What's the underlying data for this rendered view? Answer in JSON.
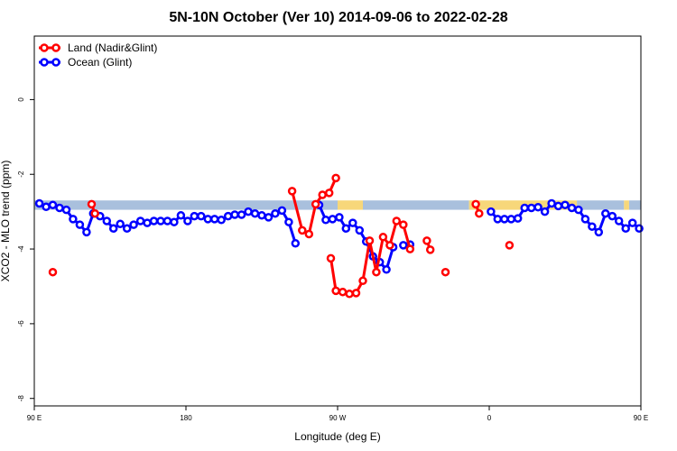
{
  "chart_data": {
    "type": "line",
    "title": "5N-10N October (Ver 10)   2014-09-06 to 2022-02-28",
    "xlabel": "Longitude (deg E)",
    "ylabel": "XCO2 - MLO trend (ppm)",
    "xlim": [
      90,
      450
    ],
    "ylim": [
      -8.2,
      1.7
    ],
    "x_ticks": [
      {
        "value": 90,
        "label": "90 E"
      },
      {
        "value": 180,
        "label": "180"
      },
      {
        "value": 270,
        "label": "90 W"
      },
      {
        "value": 360,
        "label": "0"
      },
      {
        "value": 450,
        "label": "90 E"
      },
      {
        "value": 540,
        "label": "180"
      }
    ],
    "y_ticks": [
      {
        "value": 0,
        "label": "0"
      },
      {
        "value": -2,
        "label": "-2"
      },
      {
        "value": -4,
        "label": "-4"
      },
      {
        "value": -6,
        "label": "-6"
      },
      {
        "value": -8,
        "label": "-8"
      }
    ],
    "legend_position": "top-left",
    "grid": false,
    "background_band": {
      "y_range": [
        -2.95,
        -2.7
      ],
      "segments": [
        {
          "x": [
            90,
            270
          ],
          "color": "#a9c0dd"
        },
        {
          "x": [
            270,
            285
          ],
          "color": "#f7d77a"
        },
        {
          "x": [
            285,
            348
          ],
          "color": "#a9c0dd"
        },
        {
          "x": [
            348,
            412
          ],
          "color": "#f7d77a"
        },
        {
          "x": [
            412,
            440
          ],
          "color": "#a9c0dd"
        },
        {
          "x": [
            440,
            443
          ],
          "color": "#f7d77a"
        },
        {
          "x": [
            443,
            540
          ],
          "color": "#a9c0dd"
        }
      ]
    },
    "series": [
      {
        "name": "Ocean (Glint)",
        "color": "#0000ff",
        "points": [
          [
            93,
            -2.78
          ],
          [
            97,
            -2.87
          ],
          [
            101,
            -2.82
          ],
          [
            105,
            -2.9
          ],
          [
            109,
            -2.95
          ],
          [
            113,
            -3.2
          ],
          [
            117,
            -3.35
          ],
          [
            121,
            -3.55
          ],
          [
            125,
            -3.05
          ],
          [
            129,
            -3.12
          ],
          [
            133,
            -3.25
          ],
          [
            137,
            -3.45
          ],
          [
            141,
            -3.33
          ],
          [
            145,
            -3.45
          ],
          [
            149,
            -3.35
          ],
          [
            153,
            -3.25
          ],
          [
            157,
            -3.3
          ],
          [
            161,
            -3.25
          ],
          [
            165,
            -3.25
          ],
          [
            169,
            -3.25
          ],
          [
            173,
            -3.28
          ],
          [
            177,
            -3.1
          ],
          [
            181,
            -3.25
          ],
          [
            185,
            -3.12
          ],
          [
            189,
            -3.12
          ],
          [
            193,
            -3.2
          ],
          [
            197,
            -3.2
          ],
          [
            201,
            -3.22
          ],
          [
            205,
            -3.12
          ],
          [
            209,
            -3.08
          ],
          [
            213,
            -3.08
          ],
          [
            217,
            -3.0
          ],
          [
            221,
            -3.05
          ],
          [
            225,
            -3.1
          ],
          [
            229,
            -3.15
          ],
          [
            233,
            -3.05
          ],
          [
            237,
            -2.97
          ],
          [
            241,
            -3.28
          ],
          [
            245,
            -3.85
          ],
          null,
          [
            259,
            -2.82
          ],
          [
            263,
            -3.22
          ],
          [
            267,
            -3.2
          ],
          [
            271,
            -3.15
          ],
          [
            275,
            -3.45
          ],
          [
            279,
            -3.3
          ],
          [
            283,
            -3.5
          ],
          [
            287,
            -3.8
          ],
          [
            291,
            -4.2
          ],
          [
            295,
            -4.35
          ],
          [
            299,
            -4.55
          ],
          [
            303,
            -3.95
          ],
          null,
          [
            309,
            -3.9
          ],
          [
            313,
            -3.88
          ],
          null,
          [
            361,
            -3.0
          ],
          [
            365,
            -3.2
          ],
          [
            369,
            -3.2
          ],
          [
            373,
            -3.2
          ],
          [
            377,
            -3.18
          ],
          [
            381,
            -2.9
          ],
          [
            385,
            -2.9
          ],
          [
            389,
            -2.88
          ],
          [
            393,
            -3.0
          ],
          [
            397,
            -2.78
          ],
          [
            401,
            -2.85
          ],
          [
            405,
            -2.82
          ],
          [
            409,
            -2.9
          ],
          [
            413,
            -2.95
          ],
          [
            417,
            -3.2
          ],
          [
            421,
            -3.4
          ],
          [
            425,
            -3.55
          ],
          [
            429,
            -3.05
          ],
          [
            433,
            -3.12
          ],
          [
            437,
            -3.25
          ],
          [
            441,
            -3.45
          ],
          [
            445,
            -3.3
          ],
          [
            449,
            -3.45
          ]
        ]
      },
      {
        "name": "Land (Nadir&Glint)",
        "color": "#ff0000",
        "points": [
          [
            101,
            -4.62
          ],
          null,
          [
            124,
            -2.8
          ],
          [
            126,
            -3.05
          ],
          null,
          [
            243,
            -2.45
          ],
          [
            249,
            -3.5
          ],
          [
            253,
            -3.6
          ],
          [
            257,
            -2.8
          ],
          [
            261,
            -2.55
          ],
          [
            265,
            -2.5
          ],
          [
            269,
            -2.1
          ],
          null,
          [
            266,
            -4.25
          ],
          [
            269,
            -5.12
          ],
          [
            273,
            -5.15
          ],
          [
            277,
            -5.2
          ],
          [
            281,
            -5.18
          ],
          [
            285,
            -4.85
          ],
          [
            289,
            -3.78
          ],
          [
            293,
            -4.62
          ],
          [
            297,
            -3.68
          ],
          [
            301,
            -3.9
          ],
          [
            305,
            -3.25
          ],
          [
            309,
            -3.35
          ],
          [
            313,
            -4.0
          ],
          null,
          [
            323,
            -3.78
          ],
          [
            325,
            -4.02
          ],
          null,
          [
            334,
            -4.62
          ],
          null,
          [
            352,
            -2.8
          ],
          [
            354,
            -3.05
          ],
          null,
          [
            372,
            -3.9
          ]
        ]
      }
    ]
  }
}
